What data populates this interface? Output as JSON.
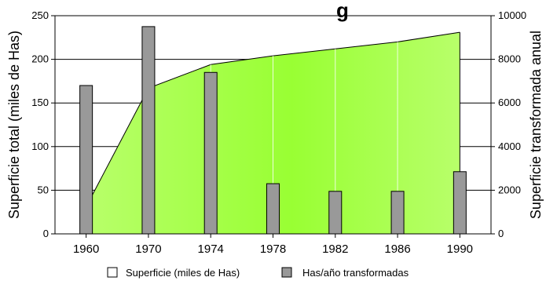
{
  "chart_data": {
    "type": "bar",
    "title_visible_part": "g",
    "xlabel": "",
    "ylabel_left": "Superficie total (miles de Has)",
    "ylabel_right": "Superficie transformada anual",
    "x": [
      1960,
      1970,
      1974,
      1978,
      1982,
      1986,
      1990
    ],
    "x_tick_labels": [
      "1960",
      "1970",
      "1974",
      "1978",
      "1982",
      "1986",
      "1990"
    ],
    "ylim_left": [
      0,
      250
    ],
    "yticks_left": [
      "0",
      "50",
      "100",
      "150",
      "200",
      "250"
    ],
    "ylim_right": [
      0,
      10000
    ],
    "yticks_right": [
      "0",
      "2000",
      "4000",
      "6000",
      "8000",
      "10000"
    ],
    "grid": "horizontal",
    "legend_position": "bottom",
    "series": [
      {
        "name": "Superficie (miles de Has)",
        "kind": "area",
        "axis": "left",
        "color": "#99ff33",
        "values": [
          31,
          167,
          194,
          204,
          212,
          220,
          231
        ]
      },
      {
        "name": "Has/año transformadas",
        "kind": "bar",
        "axis": "right",
        "color": "#999999",
        "values": [
          6800,
          9500,
          7400,
          2300,
          1950,
          1950,
          2850
        ]
      }
    ]
  }
}
